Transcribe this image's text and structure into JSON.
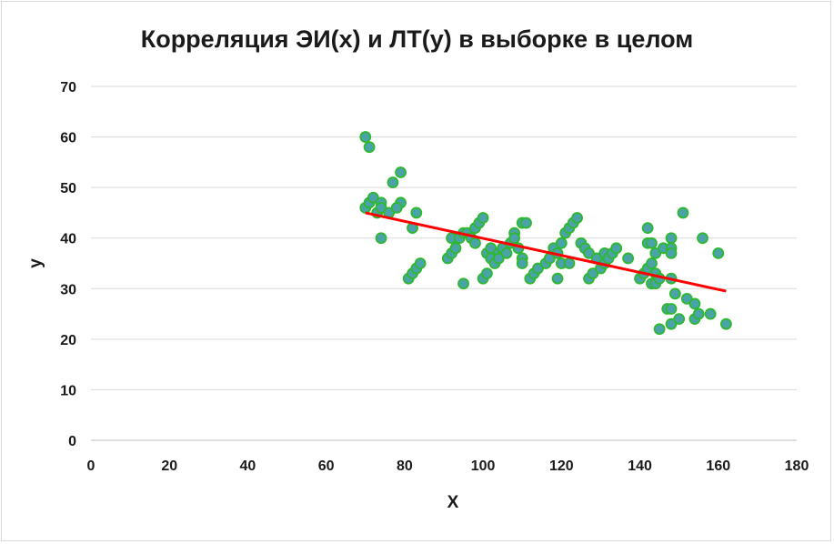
{
  "chart_data": {
    "type": "scatter",
    "title": "Корреляция ЭИ(x) и ЛТ(y) в выборке в целом",
    "xlabel": "X",
    "ylabel": "y",
    "xlim": [
      0,
      180
    ],
    "ylim": [
      0,
      70
    ],
    "xticks": [
      0,
      20,
      40,
      60,
      80,
      100,
      120,
      140,
      160,
      180
    ],
    "yticks": [
      0,
      10,
      20,
      30,
      40,
      50,
      60,
      70
    ],
    "grid": "horizontal",
    "marker_fill": "#4aa3a8",
    "marker_edge": "#2eb82e",
    "trendline_color": "#ff0000",
    "trendline": {
      "x": [
        70,
        162
      ],
      "y": [
        45,
        29.5
      ]
    },
    "points": [
      [
        70,
        60
      ],
      [
        71,
        58
      ],
      [
        70,
        46
      ],
      [
        71,
        47
      ],
      [
        72,
        48
      ],
      [
        73,
        45
      ],
      [
        74,
        47
      ],
      [
        74,
        46
      ],
      [
        76,
        45
      ],
      [
        77,
        51
      ],
      [
        79,
        53
      ],
      [
        79,
        47
      ],
      [
        78,
        46
      ],
      [
        74,
        40
      ],
      [
        82,
        42
      ],
      [
        83,
        45
      ],
      [
        81,
        32
      ],
      [
        82,
        33
      ],
      [
        83,
        34
      ],
      [
        84,
        35
      ],
      [
        91,
        36
      ],
      [
        92,
        37
      ],
      [
        92,
        40
      ],
      [
        93,
        38
      ],
      [
        94,
        40
      ],
      [
        95,
        41
      ],
      [
        96,
        41
      ],
      [
        97,
        40
      ],
      [
        98,
        39
      ],
      [
        98,
        42
      ],
      [
        99,
        43
      ],
      [
        100,
        44
      ],
      [
        100,
        32
      ],
      [
        101,
        33
      ],
      [
        95,
        31
      ],
      [
        101,
        37
      ],
      [
        102,
        38
      ],
      [
        102,
        36
      ],
      [
        103,
        35
      ],
      [
        104,
        37
      ],
      [
        104,
        36
      ],
      [
        105,
        38
      ],
      [
        106,
        37
      ],
      [
        107,
        39
      ],
      [
        108,
        41
      ],
      [
        108,
        40
      ],
      [
        109,
        38
      ],
      [
        110,
        36
      ],
      [
        110,
        35
      ],
      [
        110,
        43
      ],
      [
        111,
        43
      ],
      [
        112,
        32
      ],
      [
        113,
        33
      ],
      [
        114,
        34
      ],
      [
        116,
        35
      ],
      [
        117,
        36
      ],
      [
        118,
        38
      ],
      [
        119,
        32
      ],
      [
        119,
        37
      ],
      [
        120,
        39
      ],
      [
        120,
        35
      ],
      [
        121,
        41
      ],
      [
        122,
        42
      ],
      [
        123,
        43
      ],
      [
        124,
        44
      ],
      [
        122,
        35
      ],
      [
        125,
        39
      ],
      [
        126,
        38
      ],
      [
        127,
        37
      ],
      [
        127,
        32
      ],
      [
        128,
        33
      ],
      [
        129,
        36
      ],
      [
        130,
        34
      ],
      [
        131,
        35
      ],
      [
        131,
        37
      ],
      [
        132,
        36
      ],
      [
        133,
        37
      ],
      [
        134,
        38
      ],
      [
        137,
        36
      ],
      [
        140,
        32
      ],
      [
        141,
        33
      ],
      [
        142,
        34
      ],
      [
        142,
        39
      ],
      [
        142,
        42
      ],
      [
        143,
        35
      ],
      [
        143,
        39
      ],
      [
        143,
        31
      ],
      [
        144,
        33
      ],
      [
        144,
        31
      ],
      [
        145,
        32
      ],
      [
        144,
        37
      ],
      [
        146,
        38
      ],
      [
        147,
        26
      ],
      [
        148,
        26
      ],
      [
        148,
        23
      ],
      [
        148,
        38
      ],
      [
        148,
        40
      ],
      [
        148,
        37
      ],
      [
        148,
        32
      ],
      [
        149,
        29
      ],
      [
        150,
        24
      ],
      [
        151,
        45
      ],
      [
        152,
        28
      ],
      [
        154,
        27
      ],
      [
        154,
        24
      ],
      [
        155,
        25
      ],
      [
        156,
        40
      ],
      [
        158,
        25
      ],
      [
        160,
        37
      ],
      [
        162,
        23
      ],
      [
        145,
        22
      ]
    ]
  }
}
